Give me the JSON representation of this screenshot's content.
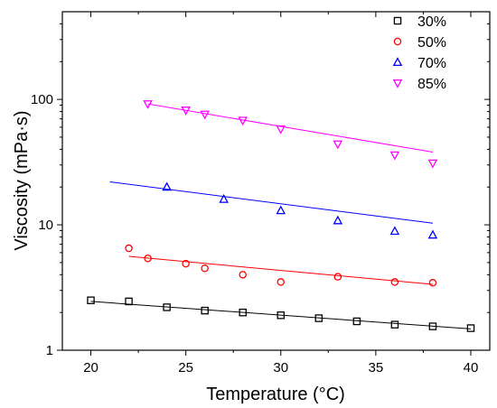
{
  "chart_data": {
    "type": "scatter",
    "title": "",
    "xlabel": "Temperature (°C)",
    "ylabel": "Viscosity (mPa·s)",
    "xlim": [
      18.5,
      41
    ],
    "ylim": [
      1,
      500
    ],
    "yscale": "log",
    "grid": false,
    "legend_position": "top-right",
    "x_ticks": [
      20,
      25,
      30,
      35,
      40
    ],
    "x_tick_labels": [
      "20",
      "25",
      "30",
      "35",
      "40"
    ],
    "y_ticks": [
      1,
      10,
      100
    ],
    "y_tick_labels": [
      "1",
      "10",
      "100"
    ],
    "series": [
      {
        "name": "30%",
        "marker": "square",
        "color": "#000000",
        "x": [
          20,
          22,
          24,
          26,
          28,
          30,
          32,
          34,
          36,
          38,
          40
        ],
        "y": [
          2.5,
          2.45,
          2.2,
          2.07,
          2.0,
          1.9,
          1.8,
          1.7,
          1.6,
          1.55,
          1.5
        ],
        "fit": {
          "x": [
            20,
            40
          ],
          "y": [
            2.45,
            1.48
          ]
        }
      },
      {
        "name": "50%",
        "marker": "circle",
        "color": "#ff0000",
        "x": [
          22,
          23,
          25,
          26,
          28,
          30,
          33,
          36,
          38
        ],
        "y": [
          6.5,
          5.4,
          4.9,
          4.5,
          4.0,
          3.5,
          3.85,
          3.5,
          3.45
        ],
        "fit": {
          "x": [
            22,
            38
          ],
          "y": [
            5.6,
            3.35
          ]
        }
      },
      {
        "name": "70%",
        "marker": "triangle-up",
        "color": "#0000ff",
        "x": [
          24,
          27,
          30,
          33,
          36,
          38
        ],
        "y": [
          20,
          16,
          13,
          10.8,
          8.9,
          8.3
        ],
        "fit": {
          "x": [
            21,
            38
          ],
          "y": [
            22,
            10.3
          ]
        }
      },
      {
        "name": "85%",
        "marker": "triangle-down",
        "color": "#ff00ff",
        "x": [
          23,
          25,
          26,
          28,
          30,
          33,
          36,
          38
        ],
        "y": [
          92,
          82,
          76,
          68,
          58,
          44,
          36,
          31
        ],
        "fit": {
          "x": [
            23,
            38
          ],
          "y": [
            92,
            38
          ]
        }
      }
    ]
  }
}
